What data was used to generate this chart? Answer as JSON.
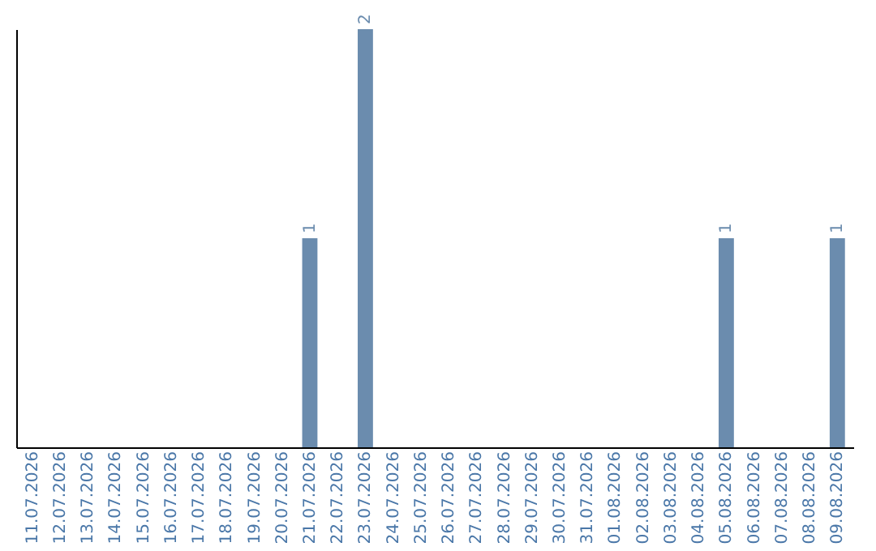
{
  "chart_data": {
    "type": "bar",
    "categories": [
      "11.07.2026",
      "12.07.2026",
      "13.07.2026",
      "14.07.2026",
      "15.07.2026",
      "16.07.2026",
      "17.07.2026",
      "18.07.2026",
      "19.07.2026",
      "20.07.2026",
      "21.07.2026",
      "22.07.2026",
      "23.07.2026",
      "24.07.2026",
      "25.07.2026",
      "26.07.2026",
      "27.07.2026",
      "28.07.2026",
      "29.07.2026",
      "30.07.2026",
      "31.07.2026",
      "01.08.2026",
      "02.08.2026",
      "03.08.2026",
      "04.08.2026",
      "05.08.2026",
      "06.08.2026",
      "07.08.2026",
      "08.08.2026",
      "09.08.2026"
    ],
    "values": [
      0,
      0,
      0,
      0,
      0,
      0,
      0,
      0,
      0,
      0,
      1,
      0,
      2,
      0,
      0,
      0,
      0,
      0,
      0,
      0,
      0,
      0,
      0,
      0,
      0,
      1,
      0,
      0,
      0,
      1
    ],
    "value_labels": [
      null,
      null,
      null,
      null,
      null,
      null,
      null,
      null,
      null,
      null,
      "1",
      null,
      "2",
      null,
      null,
      null,
      null,
      null,
      null,
      null,
      null,
      null,
      null,
      null,
      null,
      "1",
      null,
      null,
      null,
      "1"
    ],
    "color": "#6b8cae",
    "tick_labels": "x"
  }
}
